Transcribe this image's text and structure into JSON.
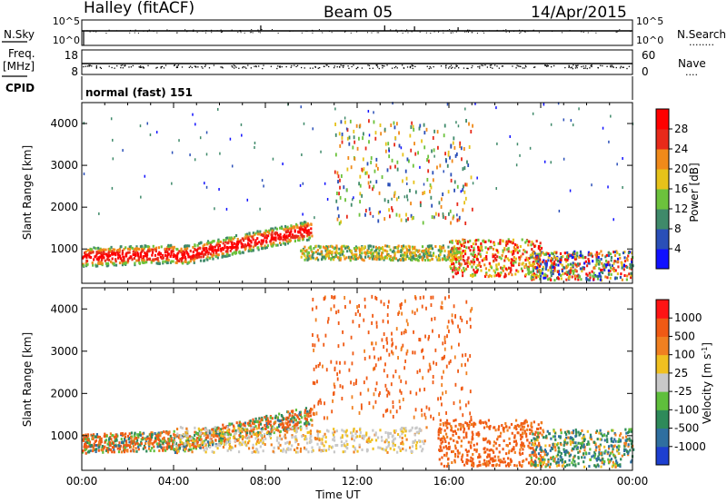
{
  "header": {
    "station": "Halley (fitACF)",
    "beam": "Beam 05",
    "date": "14/Apr/2015"
  },
  "panels": {
    "nsky": {
      "left_label": "N.Sky",
      "left_ticks": [
        "10^5",
        "10^0"
      ],
      "right_ticks": [
        "10^5",
        "10^0"
      ],
      "right_label": "N.Search",
      "right_label_dots": "........"
    },
    "freq": {
      "left_label_line1": "Freq.",
      "left_label_line2": "[MHz]",
      "left_ticks": [
        "18",
        "8"
      ],
      "right_ticks": [
        "60",
        "0"
      ],
      "right_label": "Nave",
      "right_label_dots": "...."
    },
    "cpid": {
      "label": "CPID",
      "value": "normal (fast) 151"
    }
  },
  "axes": {
    "ylabel": "Slant Range [km]",
    "xlabel": "Time UT",
    "y_ticks": [
      "1000",
      "2000",
      "3000",
      "4000"
    ],
    "x_ticks": [
      "00:00",
      "04:00",
      "08:00",
      "12:00",
      "16:00",
      "20:00",
      "00:00"
    ]
  },
  "colorbars": {
    "power": {
      "label": "Power [dB]",
      "ticks": [
        "4",
        "8",
        "12",
        "16",
        "20",
        "24",
        "28"
      ],
      "colors": [
        "#1010ff",
        "#2a4fb8",
        "#3f8a6a",
        "#6cc23c",
        "#e6c21a",
        "#f08a1a",
        "#e82a1a",
        "#ff0000"
      ]
    },
    "velocity": {
      "label": "Velocity [m s",
      "label_sup": "-1",
      "label_end": "]",
      "ticks": [
        "1000",
        "500",
        "100",
        "25",
        "-25",
        "-100",
        "-500",
        "-1000"
      ],
      "colors": [
        "#1d3fd0",
        "#2f6fa0",
        "#2e8a5a",
        "#5fbf3c",
        "#c8c8c8",
        "#f0c020",
        "#f08020",
        "#f05a14",
        "#ff1414"
      ]
    }
  },
  "chart_data": [
    {
      "type": "heatmap",
      "title": "Power [dB]",
      "xlabel": "Time UT",
      "ylabel": "Slant Range [km]",
      "xlim": [
        0,
        24
      ],
      "ylim": [
        180,
        4500
      ],
      "x_tick_labels": [
        "00:00",
        "04:00",
        "08:00",
        "12:00",
        "16:00",
        "20:00",
        "00:00"
      ],
      "y_tick_labels": [
        "1000",
        "2000",
        "3000",
        "4000"
      ],
      "colorbar_range": [
        0,
        30
      ],
      "colorbar_ticks": [
        4,
        8,
        12,
        16,
        20,
        24,
        28
      ]
    },
    {
      "type": "heatmap",
      "title": "Velocity [m s^-1]",
      "xlabel": "Time UT",
      "ylabel": "Slant Range [km]",
      "xlim": [
        0,
        24
      ],
      "ylim": [
        180,
        4500
      ],
      "x_tick_labels": [
        "00:00",
        "04:00",
        "08:00",
        "12:00",
        "16:00",
        "20:00",
        "00:00"
      ],
      "y_tick_labels": [
        "1000",
        "2000",
        "3000",
        "4000"
      ],
      "colorbar_ticks": [
        1000,
        500,
        100,
        25,
        -25,
        -100,
        -500,
        -1000
      ]
    }
  ]
}
